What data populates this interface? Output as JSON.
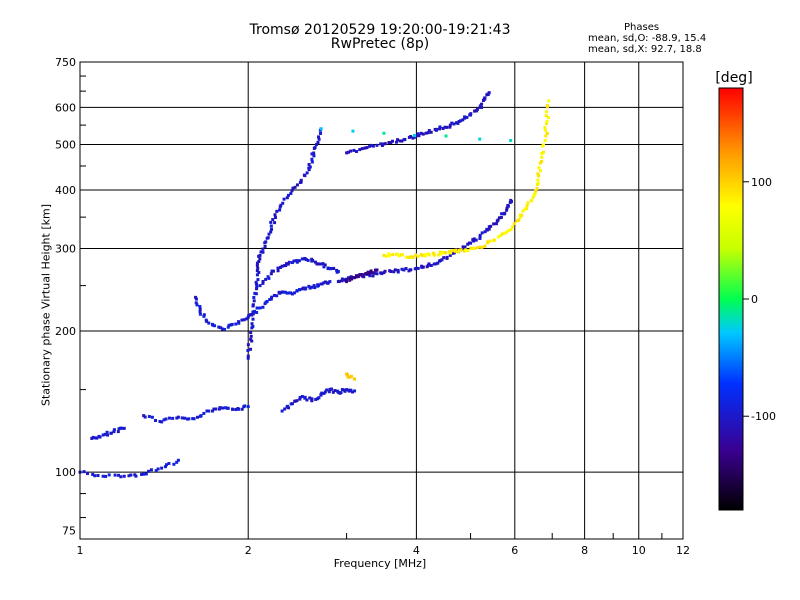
{
  "chart_data": {
    "type": "scatter",
    "title": "Tromsø 20120529 19:20:00-19:21:43",
    "subtitle": "RwPretec (8p)",
    "xlabel": "Frequency [MHz]",
    "ylabel": "Stationary phase Virtual Height [km]",
    "x_scale": "log",
    "y_scale": "log",
    "xlim": [
      1,
      12
    ],
    "ylim": [
      72,
      750
    ],
    "x_ticks": [
      1,
      2,
      4,
      6,
      8,
      10,
      12
    ],
    "y_ticks": [
      75,
      100,
      200,
      300,
      400,
      500,
      600,
      750
    ],
    "grid": true,
    "phases_header": "Phases",
    "phases_o": "mean, sd,O: -88.9, 15.4",
    "phases_x": "mean, sd,X:  92.7, 18.8",
    "colorbar": {
      "label": "[deg]",
      "ticks": [
        100,
        0,
        -100
      ],
      "range": [
        -180,
        180
      ]
    },
    "traces": [
      {
        "phase": -95,
        "points": [
          [
            1.0,
            100
          ],
          [
            1.1,
            98
          ],
          [
            1.2,
            98
          ],
          [
            1.3,
            99
          ],
          [
            1.4,
            102
          ],
          [
            1.5,
            106
          ]
        ]
      },
      {
        "phase": -95,
        "points": [
          [
            1.05,
            118
          ],
          [
            1.1,
            120
          ],
          [
            1.15,
            122
          ],
          [
            1.2,
            124
          ]
        ]
      },
      {
        "phase": -95,
        "points": [
          [
            1.3,
            132
          ],
          [
            1.4,
            128
          ],
          [
            1.5,
            131
          ],
          [
            1.6,
            130
          ],
          [
            1.7,
            135
          ],
          [
            1.8,
            137
          ],
          [
            1.9,
            136
          ],
          [
            2.0,
            138
          ]
        ]
      },
      {
        "phase": -95,
        "points": [
          [
            1.61,
            236
          ],
          [
            1.64,
            220
          ],
          [
            1.7,
            208
          ],
          [
            1.8,
            202
          ],
          [
            1.9,
            207
          ],
          [
            2.0,
            214
          ],
          [
            2.1,
            224
          ],
          [
            2.2,
            234
          ],
          [
            2.3,
            242
          ],
          [
            2.4,
            240
          ],
          [
            2.5,
            246
          ],
          [
            2.6,
            248
          ],
          [
            2.7,
            252
          ],
          [
            2.8,
            255
          ]
        ]
      },
      {
        "phase": -100,
        "points": [
          [
            2.0,
            175
          ],
          [
            2.02,
            192
          ],
          [
            2.04,
            212
          ],
          [
            2.05,
            232
          ],
          [
            2.07,
            252
          ],
          [
            2.08,
            272
          ],
          [
            2.1,
            290
          ],
          [
            2.15,
            310
          ],
          [
            2.2,
            335
          ],
          [
            2.25,
            360
          ],
          [
            2.35,
            385
          ],
          [
            2.45,
            410
          ],
          [
            2.55,
            435
          ],
          [
            2.6,
            465
          ],
          [
            2.65,
            500
          ],
          [
            2.7,
            540
          ]
        ]
      },
      {
        "phase": -100,
        "points": [
          [
            2.1,
            250
          ],
          [
            2.2,
            265
          ],
          [
            2.3,
            275
          ],
          [
            2.4,
            280
          ],
          [
            2.5,
            285
          ],
          [
            2.6,
            282
          ],
          [
            2.7,
            278
          ],
          [
            2.8,
            272
          ],
          [
            2.9,
            268
          ]
        ]
      },
      {
        "phase": -100,
        "points": [
          [
            2.3,
            135
          ],
          [
            2.4,
            140
          ],
          [
            2.5,
            145
          ],
          [
            2.6,
            142
          ],
          [
            2.7,
            146
          ],
          [
            2.8,
            150
          ],
          [
            2.9,
            148
          ],
          [
            3.0,
            150
          ],
          [
            3.1,
            149
          ]
        ]
      },
      {
        "phase": -105,
        "points": [
          [
            2.9,
            255
          ],
          [
            3.0,
            258
          ],
          [
            3.2,
            262
          ],
          [
            3.4,
            265
          ],
          [
            3.6,
            268
          ],
          [
            3.8,
            270
          ],
          [
            4.0,
            272
          ],
          [
            4.2,
            276
          ],
          [
            4.4,
            282
          ],
          [
            4.6,
            290
          ],
          [
            4.8,
            298
          ],
          [
            5.0,
            308
          ],
          [
            5.2,
            318
          ],
          [
            5.4,
            330
          ],
          [
            5.6,
            345
          ],
          [
            5.8,
            362
          ],
          [
            5.9,
            380
          ]
        ]
      },
      {
        "phase": -130,
        "points": [
          [
            3.0,
            255
          ],
          [
            3.1,
            260
          ],
          [
            3.2,
            264
          ],
          [
            3.3,
            266
          ],
          [
            3.4,
            270
          ]
        ]
      },
      {
        "phase": -105,
        "points": [
          [
            3.0,
            480
          ],
          [
            3.2,
            490
          ],
          [
            3.4,
            498
          ],
          [
            3.6,
            505
          ],
          [
            3.8,
            512
          ],
          [
            4.0,
            522
          ],
          [
            4.2,
            530
          ],
          [
            4.4,
            540
          ],
          [
            4.6,
            550
          ],
          [
            4.8,
            562
          ],
          [
            5.0,
            578
          ],
          [
            5.2,
            600
          ],
          [
            5.3,
            625
          ],
          [
            5.4,
            645
          ]
        ]
      },
      {
        "phase": 85,
        "points": [
          [
            3.5,
            290
          ],
          [
            3.7,
            292
          ],
          [
            3.9,
            288
          ],
          [
            4.1,
            290
          ],
          [
            4.3,
            292
          ],
          [
            4.5,
            294
          ],
          [
            4.7,
            296
          ],
          [
            4.9,
            298
          ],
          [
            5.2,
            302
          ],
          [
            5.5,
            312
          ],
          [
            5.8,
            325
          ],
          [
            6.1,
            345
          ],
          [
            6.3,
            365
          ],
          [
            6.5,
            390
          ],
          [
            6.6,
            420
          ],
          [
            6.7,
            460
          ],
          [
            6.8,
            510
          ],
          [
            6.85,
            560
          ],
          [
            6.9,
            620
          ]
        ]
      },
      {
        "phase": 110,
        "points": [
          [
            3.0,
            162
          ],
          [
            3.1,
            158
          ]
        ]
      },
      {
        "phase": -20,
        "points": [
          [
            2.7,
            540
          ],
          [
            5.9,
            510
          ]
        ]
      }
    ]
  }
}
